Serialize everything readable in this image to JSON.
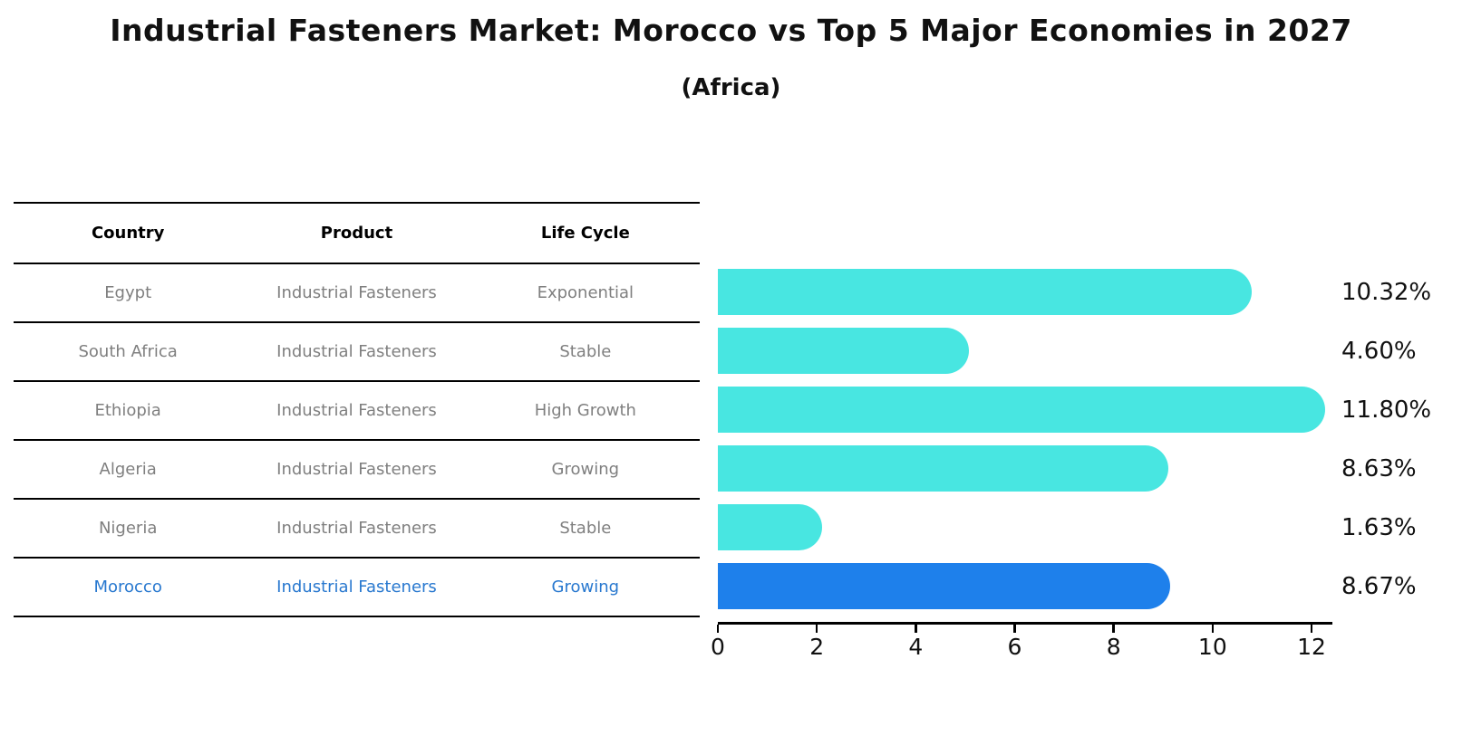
{
  "title": "Industrial Fasteners Market: Morocco vs Top 5 Major Economies in 2027",
  "subtitle": "(Africa)",
  "colors": {
    "bar": "#48E6E1",
    "highlight_bar": "#1E80EB",
    "highlight_bar_border": "#1E80EB",
    "highlight_text": "#2878cf",
    "table_text": "#7f7f7f",
    "header_text": "#000000",
    "value_label_text": "#111111"
  },
  "table": {
    "headers": [
      "Country",
      "Product",
      "Life Cycle"
    ],
    "rows": [
      {
        "country": "Egypt",
        "product": "Industrial Fasteners",
        "life_cycle": "Exponential",
        "highlight": false
      },
      {
        "country": "South Africa",
        "product": "Industrial Fasteners",
        "life_cycle": "Stable",
        "highlight": false
      },
      {
        "country": "Ethiopia",
        "product": "Industrial Fasteners",
        "life_cycle": "High Growth",
        "highlight": false
      },
      {
        "country": "Algeria",
        "product": "Industrial Fasteners",
        "life_cycle": "Growing",
        "highlight": false
      },
      {
        "country": "Nigeria",
        "product": "Industrial Fasteners",
        "life_cycle": "Stable",
        "highlight": false
      },
      {
        "country": "Morocco",
        "product": "Industrial Fasteners",
        "life_cycle": "Growing",
        "highlight": true
      }
    ]
  },
  "chart_data": {
    "type": "bar",
    "orientation": "horizontal",
    "title": "Industrial Fasteners Market: Morocco vs Top 5 Major Economies in 2027",
    "subtitle": "(Africa)",
    "categories": [
      "Egypt",
      "South Africa",
      "Ethiopia",
      "Algeria",
      "Nigeria",
      "Morocco"
    ],
    "values": [
      10.32,
      4.6,
      11.8,
      8.63,
      1.63,
      8.67
    ],
    "value_labels": [
      "10.32%",
      "4.60%",
      "11.80%",
      "8.63%",
      "1.63%",
      "8.67%"
    ],
    "highlight_index": 5,
    "xlim": [
      0,
      12
    ],
    "x_ticks": [
      0,
      2,
      4,
      6,
      8,
      10,
      12
    ],
    "grid": false,
    "legend": false
  }
}
